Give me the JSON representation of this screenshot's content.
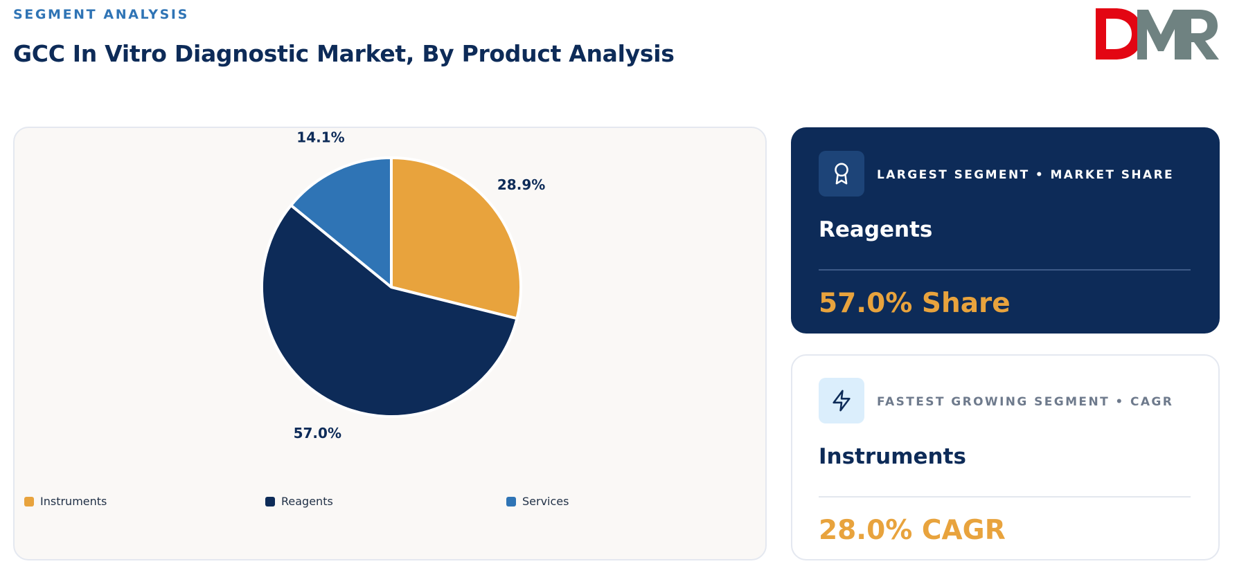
{
  "header": {
    "eyebrow": "SEGMENT ANALYSIS",
    "title": "GCC In Vitro Diagnostic Market, By Product Analysis"
  },
  "logo": {
    "text": "DMR",
    "colors": {
      "d": "#e30613",
      "m": "#6f8281",
      "r": "#6f8281"
    }
  },
  "chart_data": {
    "type": "pie",
    "slices": [
      {
        "label": "Instruments",
        "value": 28.9,
        "display": "28.9%",
        "color": "#e8a33d"
      },
      {
        "label": "Reagents",
        "value": 57.0,
        "display": "57.0%",
        "color": "#0d2b58"
      },
      {
        "label": "Services",
        "value": 14.1,
        "display": "14.1%",
        "color": "#2f74b5"
      }
    ],
    "start_angle": "12 o'clock",
    "direction": "clockwise",
    "legend_position": "bottom",
    "legend": [
      "Instruments",
      "Reagents",
      "Services"
    ]
  },
  "stats": {
    "largest": {
      "icon": "award-icon",
      "kicker": "LARGEST SEGMENT • MARKET SHARE",
      "name": "Reagents",
      "value": "57.0% Share"
    },
    "fastest": {
      "icon": "lightning-icon",
      "kicker": "FASTEST GROWING SEGMENT • CAGR",
      "name": "Instruments",
      "value": "28.0% CAGR"
    }
  },
  "colors": {
    "navy": "#0d2b58",
    "accent_blue": "#2f74b5",
    "gold": "#e8a33d",
    "card_bg": "#faf8f6"
  }
}
